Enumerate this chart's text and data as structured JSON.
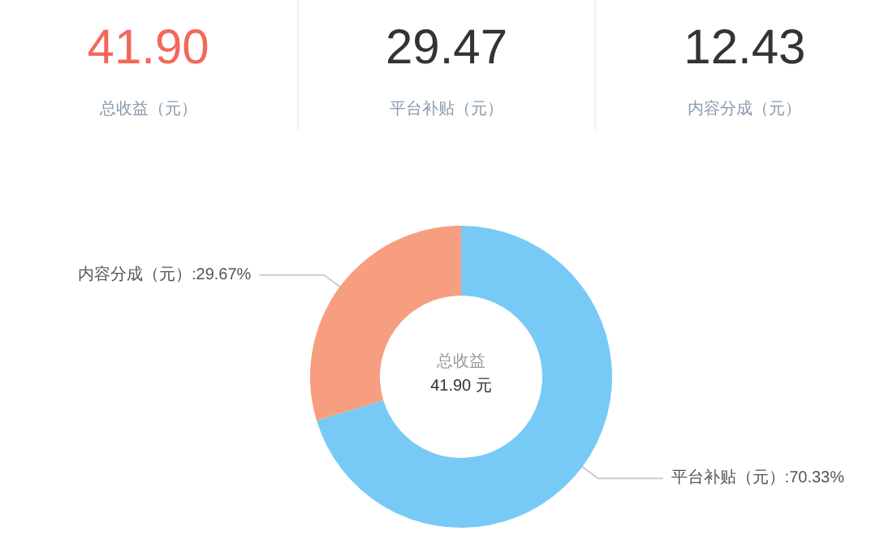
{
  "chart_data": [
    {
      "type": "other",
      "annotations": [
        "41.90",
        "总收益（元）",
        "29.47",
        "平台补贴（元）",
        "12.43",
        "内容分成（元）"
      ],
      "colors": [
        "#f4675a",
        "#333333",
        "#333333"
      ]
    },
    {
      "type": "donut",
      "categories": [
        "平台补贴（元）",
        "内容分成（元）"
      ],
      "values": [
        70.33,
        29.67
      ],
      "value_labels": [
        "70.33%",
        "29.67%"
      ],
      "colors": [
        "#77caf6",
        "#f79e80"
      ],
      "annotations": [
        "总收益",
        "41.90 元"
      ]
    }
  ]
}
